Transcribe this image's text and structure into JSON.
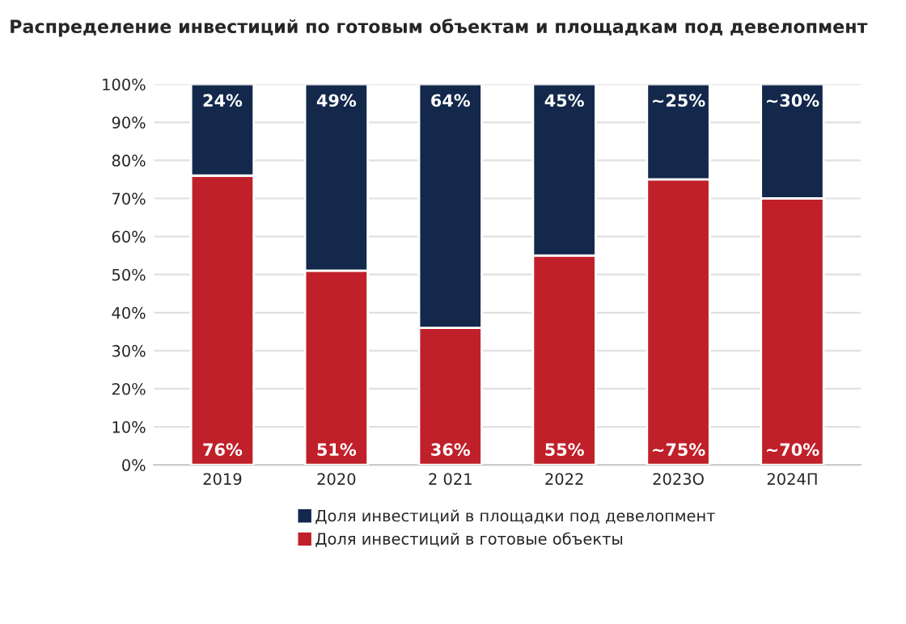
{
  "chart_data": {
    "type": "bar",
    "stacked": true,
    "title": "Распределение инвестиций по готовым объектам и площадкам под девелопмент",
    "categories": [
      "2019",
      "2020",
      "2 021",
      "2022",
      "2023О",
      "2024П"
    ],
    "series": [
      {
        "name": "Доля инвестиций в готовые объекты",
        "color": "#c0202a",
        "values": [
          76,
          51,
          36,
          55,
          75,
          70
        ],
        "value_labels": [
          "76%",
          "51%",
          "36%",
          "55%",
          "~75%",
          "~70%"
        ]
      },
      {
        "name": "Доля инвестиций в площадки под девелопмент",
        "color": "#13284b",
        "values": [
          24,
          49,
          64,
          45,
          25,
          30
        ],
        "value_labels": [
          "24%",
          "49%",
          "64%",
          "45%",
          "~25%",
          "~30%"
        ]
      }
    ],
    "ylim": [
      0,
      100
    ],
    "yticks": [
      {
        "value": 0,
        "label": "0%"
      },
      {
        "value": 10,
        "label": "10%"
      },
      {
        "value": 20,
        "label": "20%"
      },
      {
        "value": 30,
        "label": "30%"
      },
      {
        "value": 40,
        "label": "40%"
      },
      {
        "value": 50,
        "label": "50%"
      },
      {
        "value": 60,
        "label": "60%"
      },
      {
        "value": 70,
        "label": "70%"
      },
      {
        "value": 80,
        "label": "80%"
      },
      {
        "value": 90,
        "label": "90%"
      },
      {
        "value": 100,
        "label": "100%"
      }
    ],
    "grid": "y",
    "legend": "bottom"
  }
}
